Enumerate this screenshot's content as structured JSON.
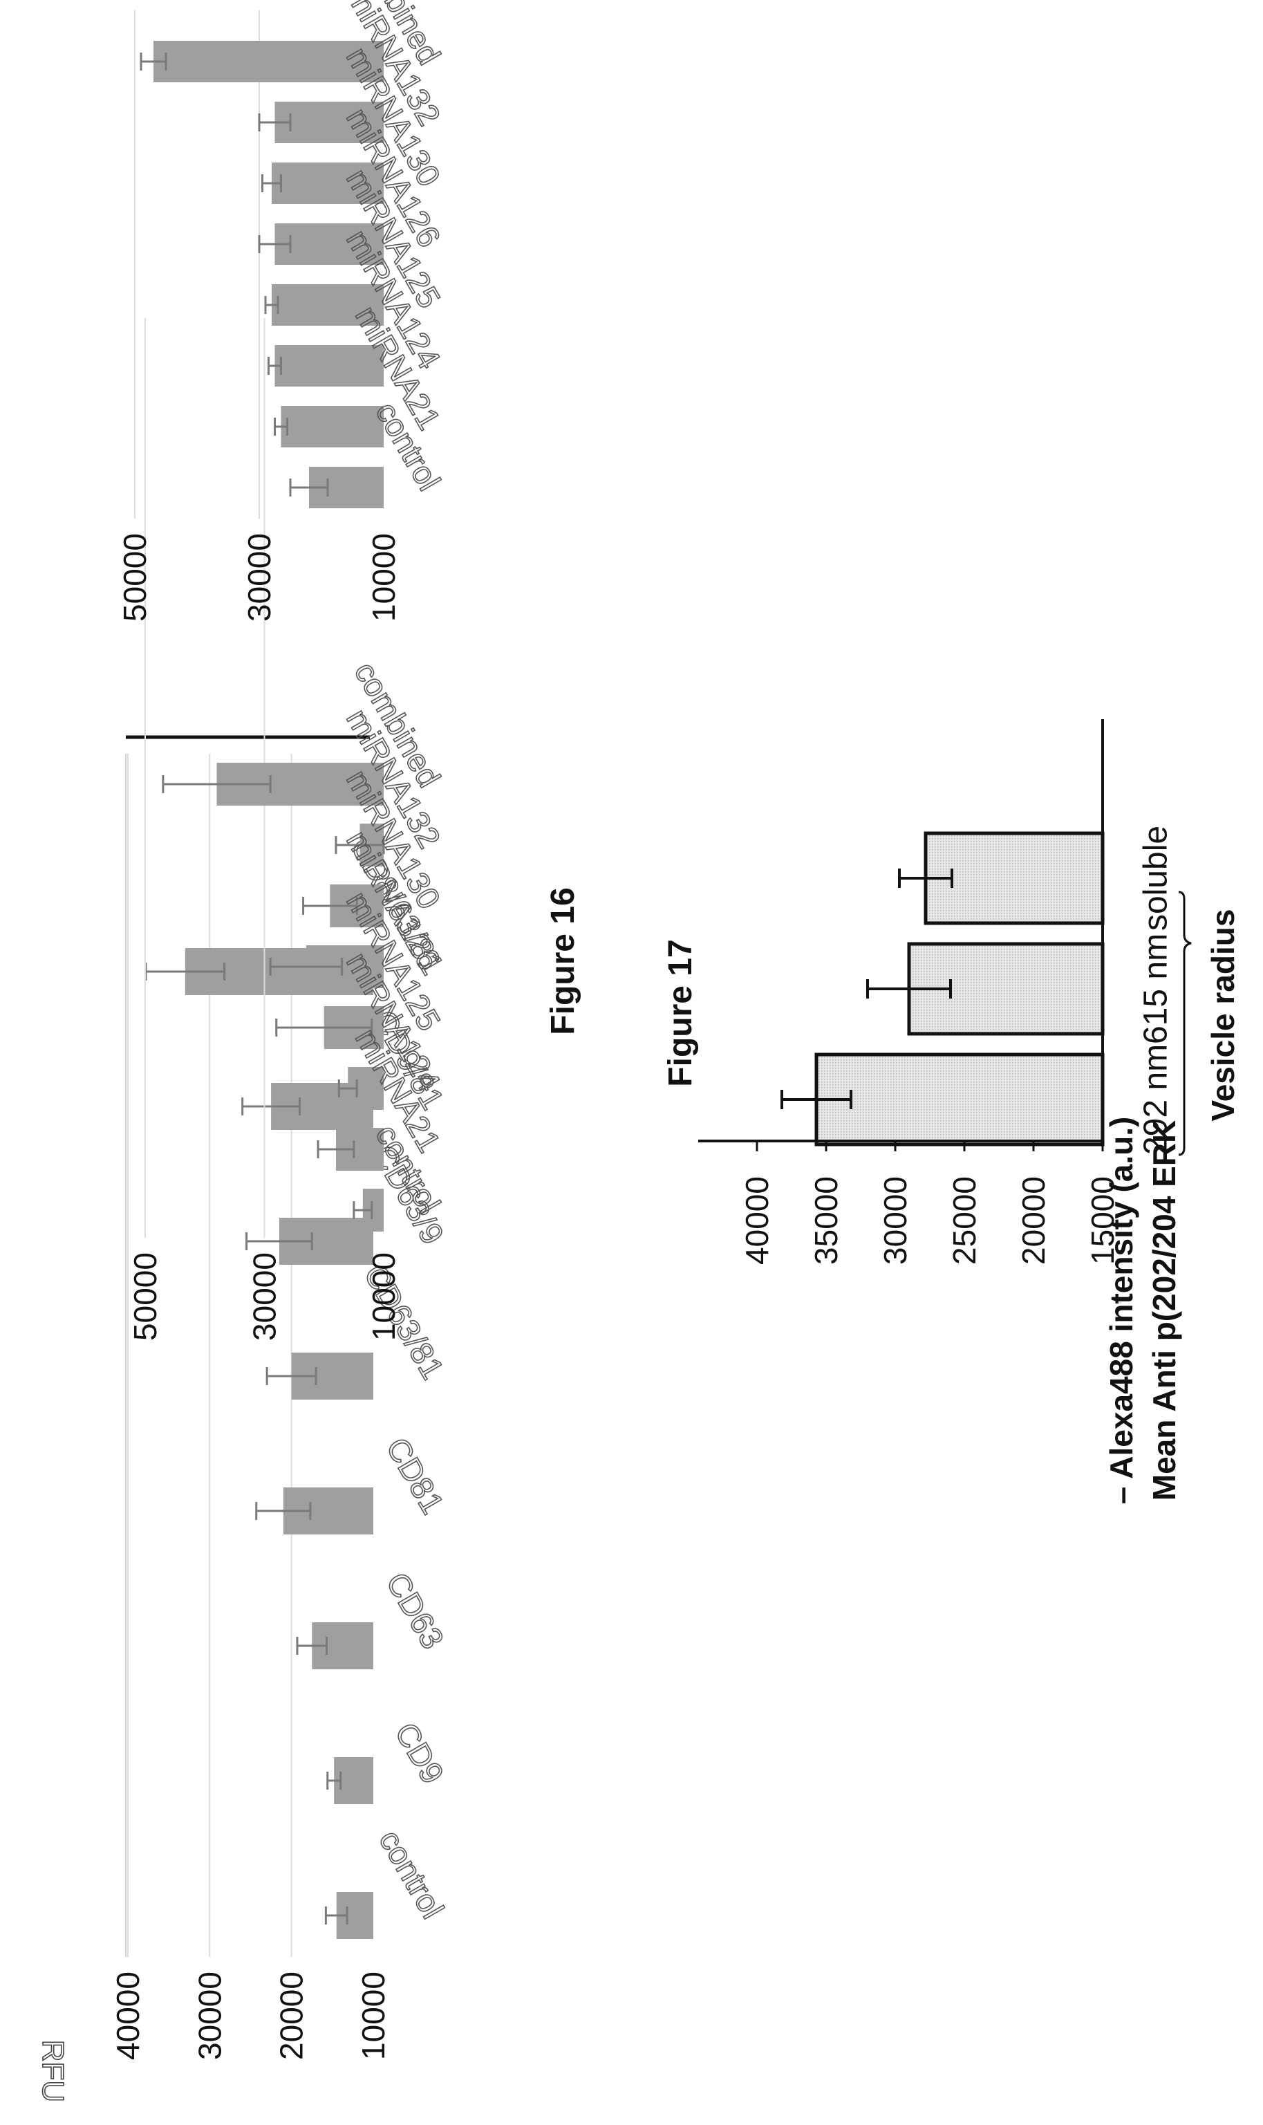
{
  "figure_16_title": "Figure 16",
  "figure_17_title": "Figure 17",
  "chart_data": [
    {
      "type": "bar",
      "ylabel": "RFU",
      "ylim": [
        10000,
        40000
      ],
      "yticks": [
        "40000",
        "30000",
        "20000",
        "10000"
      ],
      "grid": true,
      "categories": [
        "control",
        "CD9",
        "CD63",
        "CD81",
        "CD63/81",
        "CD63/9",
        "CD9/81",
        "CD8/63/81"
      ],
      "values": [
        14500,
        14800,
        17500,
        21000,
        20000,
        21500,
        22500,
        33000
      ],
      "errors": [
        1300,
        800,
        1800,
        3300,
        3000,
        4000,
        3500,
        4800
      ]
    },
    {
      "type": "bar",
      "ylim": [
        10000,
        50000
      ],
      "yticks": [
        "50000",
        "30000",
        "10000"
      ],
      "grid": true,
      "categories": [
        "control",
        "miRNA21",
        "miRNA124",
        "miRNA125",
        "miRNA126",
        "miRNA130",
        "miRNA132",
        "combined"
      ],
      "values": [
        13500,
        18000,
        16000,
        20000,
        23000,
        19000,
        14000,
        38000
      ],
      "errors": [
        1500,
        3000,
        1500,
        8000,
        6000,
        4500,
        4000,
        9000
      ]
    },
    {
      "type": "bar",
      "ylim": [
        10000,
        50000
      ],
      "yticks": [
        "50000",
        "30000",
        "10000"
      ],
      "grid": true,
      "categories": [
        "control",
        "miRNA21",
        "miRNA124",
        "miRNA125",
        "miRNA126",
        "miRNA130",
        "miRNA132",
        "combined"
      ],
      "values": [
        22000,
        26500,
        27500,
        28000,
        27500,
        28000,
        27500,
        47000
      ],
      "errors": [
        3000,
        1000,
        1000,
        1000,
        2500,
        1500,
        2500,
        2000
      ]
    },
    {
      "type": "bar",
      "ylabel_line1": "Mean Anti p(202/204 ERK",
      "ylabel_line2": "– Alexa488 intensity (a.u.)",
      "ylim": [
        15000,
        40000
      ],
      "yticks": [
        "40000",
        "35000",
        "30000",
        "25000",
        "20000",
        "15000"
      ],
      "grid": false,
      "categories": [
        "292 nm",
        "615 nm",
        "soluble"
      ],
      "group_label": "Vesicle radius",
      "values": [
        35700,
        29000,
        27800
      ],
      "errors": [
        2500,
        3000,
        1900
      ]
    }
  ]
}
